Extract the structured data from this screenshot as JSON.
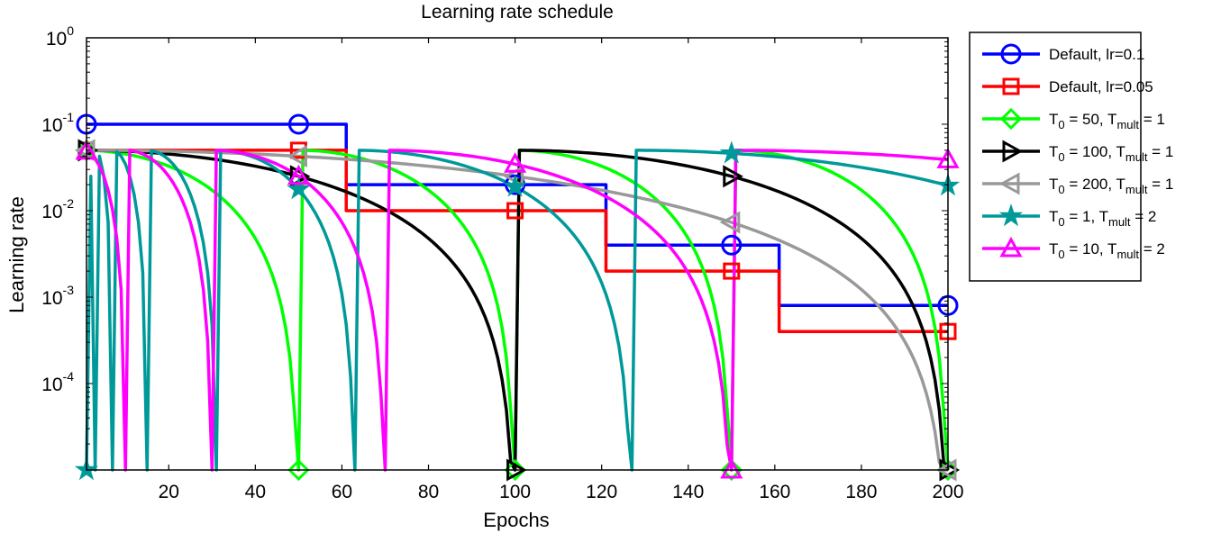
{
  "chart_data": {
    "type": "line",
    "title": "Learning rate schedule",
    "xlabel": "Epochs",
    "ylabel": "Learning rate",
    "xlim": [
      1,
      200
    ],
    "ylim": [
      1e-05,
      1
    ],
    "yscale": "log",
    "grid": false,
    "legend_position": "outside-right",
    "x_ticks": [
      {
        "value": 20,
        "label": "20"
      },
      {
        "value": 40,
        "label": "40"
      },
      {
        "value": 60,
        "label": "60"
      },
      {
        "value": 80,
        "label": "80"
      },
      {
        "value": 100,
        "label": "100"
      },
      {
        "value": 120,
        "label": "120"
      },
      {
        "value": 140,
        "label": "140"
      },
      {
        "value": 160,
        "label": "160"
      },
      {
        "value": 180,
        "label": "180"
      },
      {
        "value": 200,
        "label": "200"
      }
    ],
    "y_ticks": [
      {
        "value": 1,
        "base": "10",
        "exp": "0"
      },
      {
        "value": 0.1,
        "base": "10",
        "exp": "-1"
      },
      {
        "value": 0.01,
        "base": "10",
        "exp": "-2"
      },
      {
        "value": 0.001,
        "base": "10",
        "exp": "-3"
      },
      {
        "value": 0.0001,
        "base": "10",
        "exp": "-4"
      }
    ],
    "series": [
      {
        "label_parts": [
          [
            "Default, lr=0.1",
            ""
          ]
        ],
        "color": "#0000ff",
        "marker": "circle",
        "kind": "step",
        "base_lr": 0.1,
        "decay_epochs": [
          60,
          120,
          160
        ],
        "factor": 0.2,
        "marker_x": [
          1,
          50,
          100,
          150,
          200
        ]
      },
      {
        "label_parts": [
          [
            "Default, lr=0.05",
            ""
          ]
        ],
        "color": "#ff0000",
        "marker": "square",
        "kind": "step",
        "base_lr": 0.05,
        "decay_epochs": [
          60,
          120,
          160
        ],
        "factor": 0.2,
        "marker_x": [
          1,
          50,
          100,
          150,
          200
        ]
      },
      {
        "label_parts": [
          [
            "T",
            ""
          ],
          [
            "0",
            "sub"
          ],
          [
            " = 50, T",
            ""
          ],
          [
            "mult",
            "sub"
          ],
          [
            " = 1",
            ""
          ]
        ],
        "color": "#00ff00",
        "marker": "diamond",
        "kind": "sgdr",
        "base_lr": 0.05,
        "T0": 50,
        "Tmult": 1,
        "marker_x": [
          1,
          50,
          100,
          150,
          200
        ]
      },
      {
        "label_parts": [
          [
            "T",
            ""
          ],
          [
            "0",
            "sub"
          ],
          [
            " = 100, T",
            ""
          ],
          [
            "mult",
            "sub"
          ],
          [
            " = 1",
            ""
          ]
        ],
        "color": "#000000",
        "marker": "triangle-right",
        "kind": "sgdr",
        "base_lr": 0.05,
        "T0": 100,
        "Tmult": 1,
        "marker_x": [
          1,
          50,
          100,
          150,
          200
        ]
      },
      {
        "label_parts": [
          [
            "T",
            ""
          ],
          [
            "0",
            "sub"
          ],
          [
            " = 200, T",
            ""
          ],
          [
            "mult",
            "sub"
          ],
          [
            " = 1",
            ""
          ]
        ],
        "color": "#999999",
        "marker": "triangle-left",
        "kind": "sgdr",
        "base_lr": 0.05,
        "T0": 200,
        "Tmult": 1,
        "marker_x": [
          1,
          50,
          100,
          150,
          200
        ]
      },
      {
        "label_parts": [
          [
            "T",
            ""
          ],
          [
            "0",
            "sub"
          ],
          [
            " = 1, T",
            ""
          ],
          [
            "mult",
            "sub"
          ],
          [
            " = 2",
            ""
          ]
        ],
        "color": "#009999",
        "marker": "star",
        "kind": "sgdr",
        "base_lr": 0.05,
        "T0": 1,
        "Tmult": 2,
        "marker_x": [
          1,
          50,
          100,
          150,
          200
        ]
      },
      {
        "label_parts": [
          [
            "T",
            ""
          ],
          [
            "0",
            "sub"
          ],
          [
            " = 10, T",
            ""
          ],
          [
            "mult",
            "sub"
          ],
          [
            " = 2",
            ""
          ]
        ],
        "color": "#ff00ff",
        "marker": "triangle-up",
        "kind": "sgdr",
        "base_lr": 0.05,
        "T0": 10,
        "Tmult": 2,
        "marker_x": [
          1,
          50,
          100,
          150,
          200
        ]
      }
    ]
  }
}
